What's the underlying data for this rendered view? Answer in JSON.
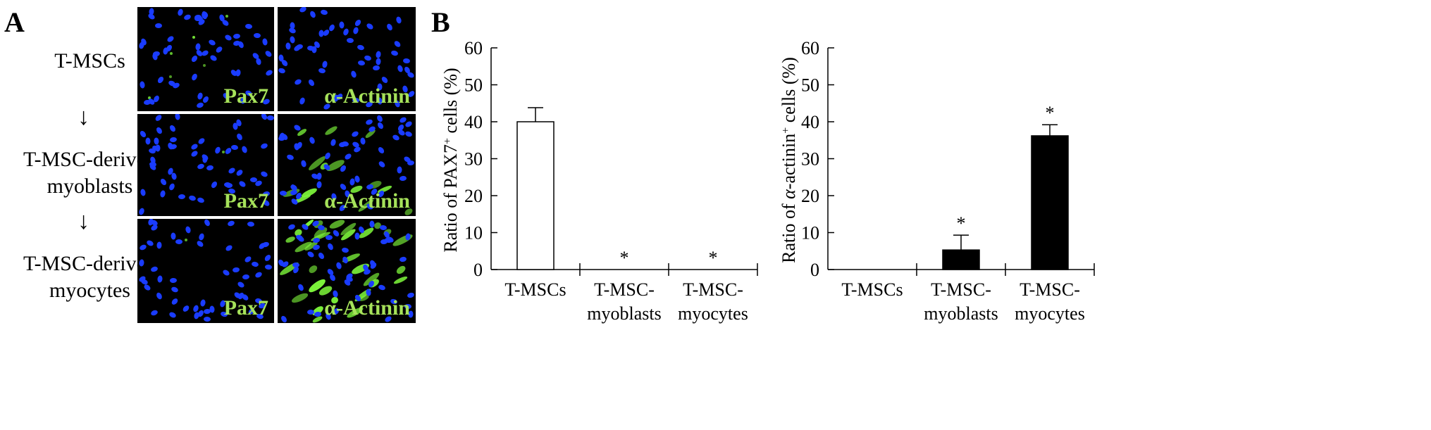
{
  "panel_a": {
    "letter": "A",
    "rows": [
      {
        "label_lines": [
          "T-MSCs"
        ],
        "pax7": "Pax7",
        "actinin": "α-Actinin",
        "actinin_green": 0
      },
      {
        "label_lines": [
          "T-MSC-derived",
          "myoblasts"
        ],
        "pax7": "Pax7",
        "actinin": "α-Actinin",
        "actinin_green": 0.35
      },
      {
        "label_lines": [
          "T-MSC-derived",
          "myocytes"
        ],
        "pax7": "Pax7",
        "actinin": "α-Actinin",
        "actinin_green": 0.8
      }
    ],
    "arrow": "↓",
    "colors": {
      "nucleus": "#1a3cff",
      "marker": "#7cf43a",
      "label": "#a6e25a",
      "background": "#000000"
    }
  },
  "panel_b": {
    "letter": "B"
  },
  "chart_data": [
    {
      "type": "bar",
      "ylabel_prefix": "Ratio of PAX7",
      "ylabel_sup": "+",
      "ylabel_suffix": " cells (%)",
      "ylim": [
        0,
        60
      ],
      "yticks": [
        0,
        10,
        20,
        30,
        40,
        50,
        60
      ],
      "categories": [
        [
          "T-MSCs"
        ],
        [
          "T-MSC-",
          "myoblasts"
        ],
        [
          "T-MSC-",
          "myocytes"
        ]
      ],
      "values": [
        40,
        0,
        0
      ],
      "errors": [
        3.8,
        0,
        0
      ],
      "significance": [
        "",
        "*",
        "*"
      ],
      "bar_color": "#ffffff",
      "bar_edge": "#000000"
    },
    {
      "type": "bar",
      "ylabel_prefix": "Ratio of ",
      "ylabel_italic": "α",
      "ylabel_mid": "-actinin",
      "ylabel_sup": "+",
      "ylabel_suffix": " cells (%)",
      "ylim": [
        0,
        60
      ],
      "yticks": [
        0,
        10,
        20,
        30,
        40,
        50,
        60
      ],
      "categories": [
        [
          "T-MSCs"
        ],
        [
          "T-MSC-",
          "myoblasts"
        ],
        [
          "T-MSC-",
          "myocytes"
        ]
      ],
      "values": [
        0,
        5.3,
        36.2
      ],
      "errors": [
        0,
        4,
        3
      ],
      "significance": [
        "",
        "*",
        "*"
      ],
      "bar_color": "#000000",
      "bar_edge": "#000000"
    }
  ]
}
